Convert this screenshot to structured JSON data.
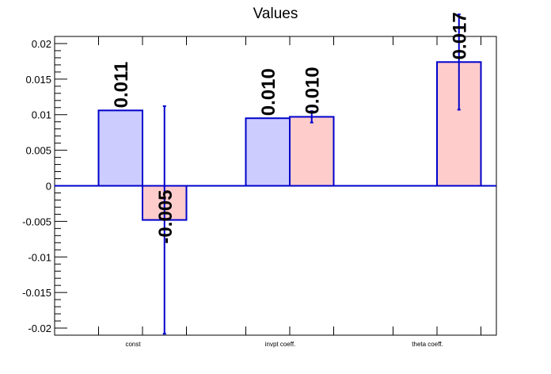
{
  "chart_data": {
    "type": "bar",
    "title": "Values",
    "categories": [
      "const",
      "invpt coeff.",
      "theta coeff."
    ],
    "ylim": [
      -0.021,
      0.021
    ],
    "yticks": [
      "0.02",
      "0.015",
      "0.01",
      "0.005",
      "0",
      "-0.005",
      "-0.01",
      "-0.015",
      "-0.02"
    ],
    "ytick_values": [
      0.02,
      0.015,
      0.01,
      0.005,
      0,
      -0.005,
      -0.01,
      -0.015,
      -0.02
    ],
    "series": [
      {
        "color": "#ccccff",
        "values": [
          0.0106,
          0.0095,
          null
        ],
        "errors": [
          null,
          null,
          null
        ],
        "labels": [
          "0.011",
          "0.010",
          ""
        ]
      },
      {
        "color": "#ffcccc",
        "values": [
          -0.0048,
          0.0097,
          0.0174
        ],
        "errors": [
          0.016,
          0.0008,
          0.0067
        ],
        "labels": [
          "-0.005",
          "0.010",
          "0.017"
        ]
      }
    ],
    "stroke_color": "#0000cc",
    "grid": false,
    "legend": "none"
  }
}
